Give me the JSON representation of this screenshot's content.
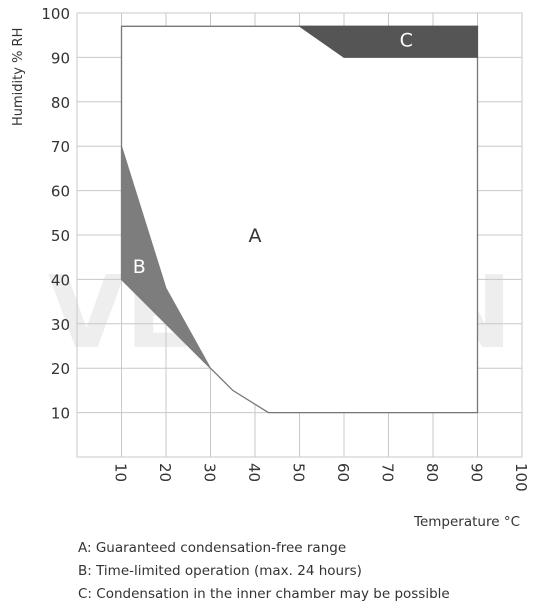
{
  "watermark": "VERKON",
  "chart_data": {
    "type": "area",
    "ylabel": "Humidity % RH",
    "xlabel": "Temperature °C",
    "xlim": [
      0,
      100
    ],
    "ylim": [
      0,
      100
    ],
    "grid": true,
    "x_ticks": [
      10,
      20,
      30,
      40,
      50,
      60,
      70,
      80,
      90,
      100
    ],
    "y_ticks": [
      10,
      20,
      30,
      40,
      50,
      60,
      70,
      80,
      90,
      100
    ],
    "regions": [
      {
        "label": "A",
        "color": "#ffffff",
        "label_at": [
          40,
          50
        ],
        "points": [
          [
            10,
            97
          ],
          [
            90,
            97
          ],
          [
            90,
            10
          ],
          [
            43,
            10
          ],
          [
            35,
            15
          ],
          [
            30,
            20
          ],
          [
            10,
            40
          ],
          [
            10,
            70
          ],
          [
            10,
            97
          ]
        ]
      },
      {
        "label": "B",
        "color": "#7d7d7d",
        "label_at": [
          14,
          43
        ],
        "points": [
          [
            10,
            70
          ],
          [
            20,
            38
          ],
          [
            30,
            20
          ],
          [
            10,
            40
          ]
        ]
      },
      {
        "label": "C",
        "color": "#555555",
        "label_at": [
          74,
          94
        ],
        "points": [
          [
            50,
            97
          ],
          [
            90,
            97
          ],
          [
            90,
            90
          ],
          [
            60,
            90
          ]
        ]
      }
    ]
  },
  "legend": [
    "A: Guaranteed condensation-free range",
    "B: Time-limited operation (max. 24 hours)",
    "C: Condensation in the inner chamber may be possible"
  ]
}
